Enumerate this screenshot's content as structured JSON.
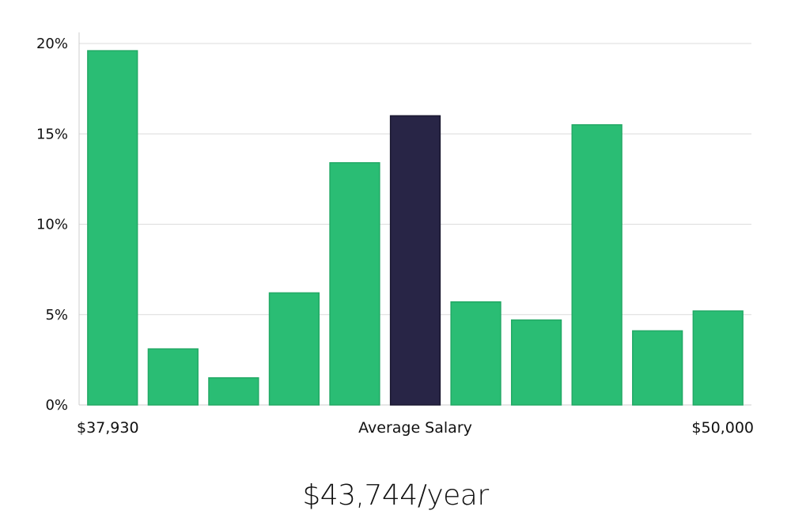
{
  "chart_data": {
    "type": "bar",
    "values": [
      19.6,
      3.1,
      1.5,
      6.2,
      13.4,
      16.0,
      5.7,
      4.7,
      15.5,
      4.1,
      5.2
    ],
    "highlight_index": 5,
    "colors": {
      "bar": "#2abd74",
      "highlight": "#282546",
      "grid": "#dcdcdc",
      "axis": "#cccccc"
    },
    "ylim": [
      0,
      20
    ],
    "yticks": [
      {
        "value": 0,
        "label": "0%"
      },
      {
        "value": 5,
        "label": "5%"
      },
      {
        "value": 10,
        "label": "10%"
      },
      {
        "value": 15,
        "label": "15%"
      },
      {
        "value": 20,
        "label": "20%"
      }
    ],
    "x_min_label": "$37,930",
    "x_mid_label": "Average Salary",
    "x_max_label": "$50,000",
    "grid": true
  },
  "headline": "$43,744/year"
}
